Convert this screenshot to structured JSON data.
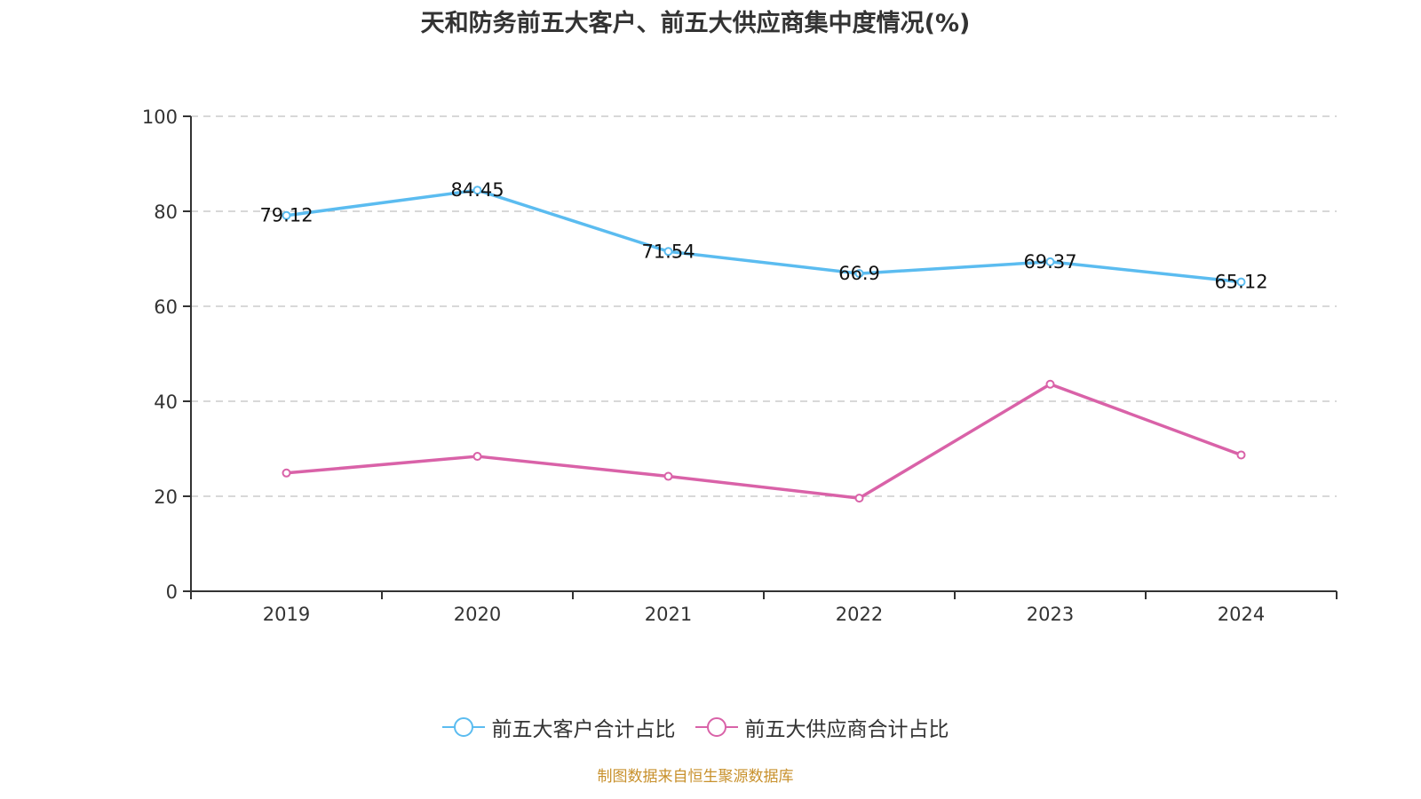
{
  "chart_data": {
    "type": "line",
    "title": "天和防务前五大客户、前五大供应商集中度情况(%)",
    "xlabel": "",
    "ylabel": "",
    "categories": [
      "2019",
      "2020",
      "2021",
      "2022",
      "2023",
      "2024"
    ],
    "ylim": [
      0,
      100
    ],
    "yticks": [
      0,
      20,
      40,
      60,
      80,
      100
    ],
    "grid": true,
    "legend_position": "bottom",
    "series": [
      {
        "name": "前五大客户合计占比",
        "color": "#5bbcf0",
        "values": [
          79.12,
          84.45,
          71.54,
          66.9,
          69.37,
          65.12
        ],
        "labels": [
          "79.12",
          "84.45",
          "71.54",
          "66.9",
          "69.37",
          "65.12"
        ],
        "show_labels": true
      },
      {
        "name": "前五大供应商合计占比",
        "color": "#d962a8",
        "values": [
          24.9,
          28.4,
          24.2,
          19.6,
          43.6,
          28.7
        ],
        "show_labels": false
      }
    ],
    "source_note": "制图数据来自恒生聚源数据库"
  }
}
